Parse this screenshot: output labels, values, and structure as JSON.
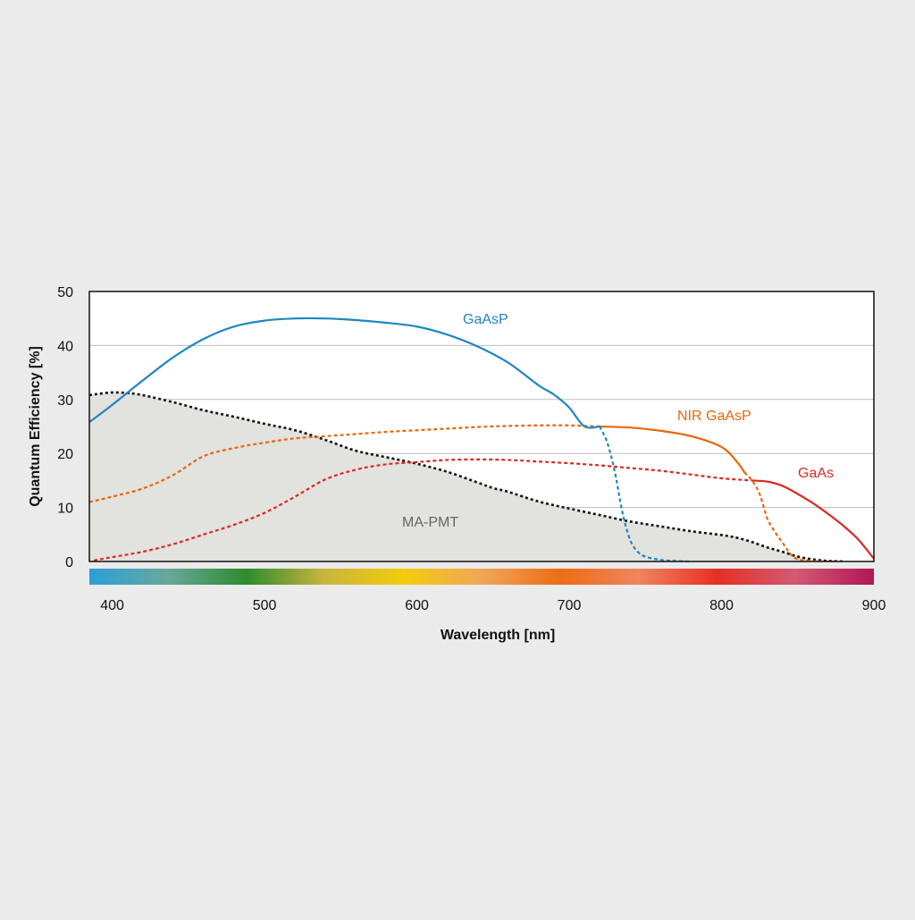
{
  "chart_data": {
    "type": "line",
    "xlabel": "Wavelength [nm]",
    "ylabel": "Quantum Efficiency [%]",
    "xlim": [
      385,
      900
    ],
    "ylim": [
      0,
      50
    ],
    "x_ticks": [
      "400",
      "500",
      "600",
      "700",
      "800",
      "900"
    ],
    "y_ticks": [
      "0",
      "10",
      "20",
      "30",
      "40",
      "50"
    ],
    "grid": "horizontal",
    "colors": {
      "background": "#ebebeb",
      "plot_background": "#ffffff",
      "grid": "#bdbdbd",
      "ma_pmt_fill": "#e2e2de",
      "gaasp": "#1f86c1",
      "nir_gaasp": "#e8660c",
      "gaas": "#db2a21",
      "ma_pmt": "#111111",
      "ma_pmt_label": "#666666"
    },
    "spectrum_gradient": [
      "#2a9fd8",
      "#6aa79c",
      "#2e8b2e",
      "#c9b53c",
      "#f2cc0d",
      "#f0a65a",
      "#ec6d15",
      "#f08460",
      "#e62f24",
      "#d25a73",
      "#b21557"
    ],
    "series": [
      {
        "name": "GaAsP",
        "x": [
          385,
          400,
          420,
          440,
          460,
          480,
          500,
          520,
          540,
          560,
          580,
          600,
          620,
          640,
          660,
          680,
          690,
          700,
          710,
          720,
          725,
          730,
          735,
          740,
          745,
          750,
          760,
          770,
          780
        ],
        "y": [
          25.8,
          29,
          33.5,
          37.8,
          41.2,
          43.5,
          44.6,
          45,
          45,
          44.7,
          44.2,
          43.5,
          42,
          39.8,
          36.8,
          32.6,
          30.9,
          28.5,
          25,
          25,
          22,
          16.5,
          9,
          4,
          1.8,
          0.9,
          0.3,
          0.1,
          0
        ],
        "solid_until": 720
      },
      {
        "name": "NIR GaAsP",
        "x": [
          385,
          400,
          420,
          440,
          460,
          480,
          500,
          520,
          540,
          560,
          580,
          600,
          620,
          640,
          660,
          680,
          700,
          720,
          740,
          760,
          780,
          800,
          810,
          815,
          820,
          825,
          830,
          835,
          840,
          845,
          850,
          860,
          870,
          875
        ],
        "y": [
          11,
          12,
          13.5,
          16,
          19.5,
          21,
          22,
          22.8,
          23.2,
          23.6,
          24,
          24.3,
          24.6,
          24.9,
          25.1,
          25.2,
          25.2,
          25,
          24.8,
          24.2,
          23.2,
          21.2,
          18.5,
          16.5,
          15,
          12.5,
          8,
          5.5,
          3.5,
          1.5,
          0.4,
          0.1,
          0,
          0
        ],
        "solid_until": 720,
        "solid_from": 815
      },
      {
        "name": "GaAs",
        "x": [
          388,
          400,
          420,
          440,
          460,
          480,
          500,
          520,
          540,
          560,
          580,
          600,
          620,
          640,
          660,
          680,
          700,
          720,
          740,
          760,
          780,
          800,
          820,
          830,
          840,
          850,
          860,
          870,
          880,
          890,
          900
        ],
        "y": [
          0.2,
          0.8,
          1.8,
          3.2,
          5,
          6.8,
          9,
          12,
          15.2,
          17,
          18,
          18.4,
          18.8,
          18.9,
          18.8,
          18.5,
          18.2,
          17.8,
          17.3,
          16.8,
          16.1,
          15.4,
          15,
          14.8,
          14,
          12.5,
          10.8,
          8.8,
          6.6,
          4,
          0.5
        ],
        "solid_from": 820
      },
      {
        "name": "MA-PMT",
        "x": [
          385,
          390,
          400,
          410,
          420,
          440,
          460,
          480,
          500,
          520,
          540,
          560,
          580,
          600,
          620,
          640,
          650,
          660,
          680,
          700,
          720,
          740,
          760,
          780,
          800,
          810,
          820,
          830,
          840,
          850,
          860,
          870,
          880
        ],
        "y": [
          30.8,
          31,
          31.3,
          31.2,
          30.8,
          29.5,
          28,
          26.8,
          25.5,
          24.3,
          22.5,
          20.5,
          19.3,
          18.1,
          16.6,
          14.6,
          13.6,
          12.9,
          11.1,
          9.8,
          8.6,
          7.4,
          6.5,
          5.6,
          4.9,
          4.4,
          3.6,
          2.6,
          1.8,
          0.9,
          0.4,
          0.1,
          0
        ],
        "filled": true
      }
    ],
    "labels": {
      "gaasp": "GaAsP",
      "nir_gaasp": "NIR GaAsP",
      "gaas": "GaAs",
      "ma_pmt": "MA-PMT"
    }
  }
}
